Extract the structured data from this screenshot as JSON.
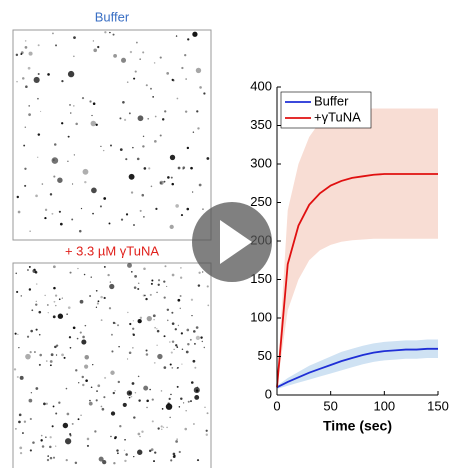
{
  "panels": [
    {
      "label": "Buffer",
      "color": "#3a6fc4"
    },
    {
      "label": "+ 3.3 µM γTuNA",
      "color": "#e0201b"
    }
  ],
  "chart_data": {
    "type": "line",
    "x_label": "Time (sec)",
    "x": [
      0,
      10,
      20,
      30,
      40,
      50,
      60,
      70,
      80,
      90,
      100,
      110,
      120,
      130,
      140,
      150
    ],
    "xlim": [
      0,
      150
    ],
    "xticks": [
      0,
      50,
      100,
      150
    ],
    "ylim": [
      0,
      400
    ],
    "yticks": [
      0,
      50,
      100,
      150,
      200,
      250,
      300,
      350,
      400
    ],
    "legend": "upper left",
    "series": [
      {
        "name": "Buffer",
        "color": "#1f2fd6",
        "band_color": "#cfe2f3",
        "values": [
          10,
          17,
          23,
          29,
          34,
          39,
          44,
          48,
          52,
          55,
          57,
          58,
          59,
          59,
          60,
          60
        ],
        "lower": [
          8,
          12,
          16,
          20,
          24,
          28,
          32,
          36,
          40,
          43,
          45,
          46,
          47,
          47,
          48,
          48
        ],
        "upper": [
          12,
          22,
          30,
          38,
          44,
          50,
          56,
          60,
          64,
          67,
          69,
          70,
          71,
          71,
          72,
          72
        ]
      },
      {
        "name": "+γTuNA",
        "color": "#e01010",
        "band_color": "#f8ddd4",
        "values": [
          10,
          170,
          220,
          247,
          262,
          272,
          278,
          282,
          284,
          286,
          287,
          287,
          287,
          287,
          287,
          287
        ],
        "lower": [
          10,
          110,
          150,
          175,
          188,
          195,
          199,
          201,
          202,
          203,
          203,
          203,
          203,
          203,
          203,
          203
        ],
        "upper": [
          10,
          240,
          300,
          335,
          355,
          365,
          369,
          371,
          372,
          372,
          372,
          372,
          372,
          372,
          372,
          372
        ]
      }
    ]
  }
}
